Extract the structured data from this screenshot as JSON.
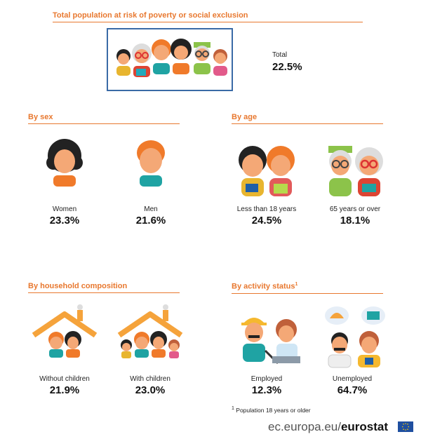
{
  "title": "Total population at risk of poverty or social exclusion",
  "total": {
    "label": "Total",
    "value": "22.5%"
  },
  "by_sex": {
    "heading": "By sex",
    "women": {
      "label": "Women",
      "value": "23.3%"
    },
    "men": {
      "label": "Men",
      "value": "21.6%"
    }
  },
  "by_age": {
    "heading": "By age",
    "young": {
      "label": "Less than 18 years",
      "value": "24.5%"
    },
    "old": {
      "label": "65 years or over",
      "value": "18.1%"
    }
  },
  "by_household": {
    "heading": "By household composition",
    "without": {
      "label": "Without children",
      "value": "21.9%"
    },
    "with": {
      "label": "With children",
      "value": "23.0%"
    }
  },
  "by_activity": {
    "heading": "By activity status",
    "heading_mark": "1",
    "employed": {
      "label": "Employed",
      "value": "12.3%"
    },
    "unemployed": {
      "label": "Unemployed",
      "value": "64.7%"
    }
  },
  "footnote": {
    "mark": "1",
    "text": "Population 18 years or older"
  },
  "brand": {
    "domain": "ec.europa.eu/",
    "name": "eurostat"
  },
  "colors": {
    "accent": "#e8782f",
    "box": "#3a6aa6",
    "skin": "#f4a876",
    "teal": "#1fa3a3",
    "orange_hair": "#f07a2a"
  }
}
